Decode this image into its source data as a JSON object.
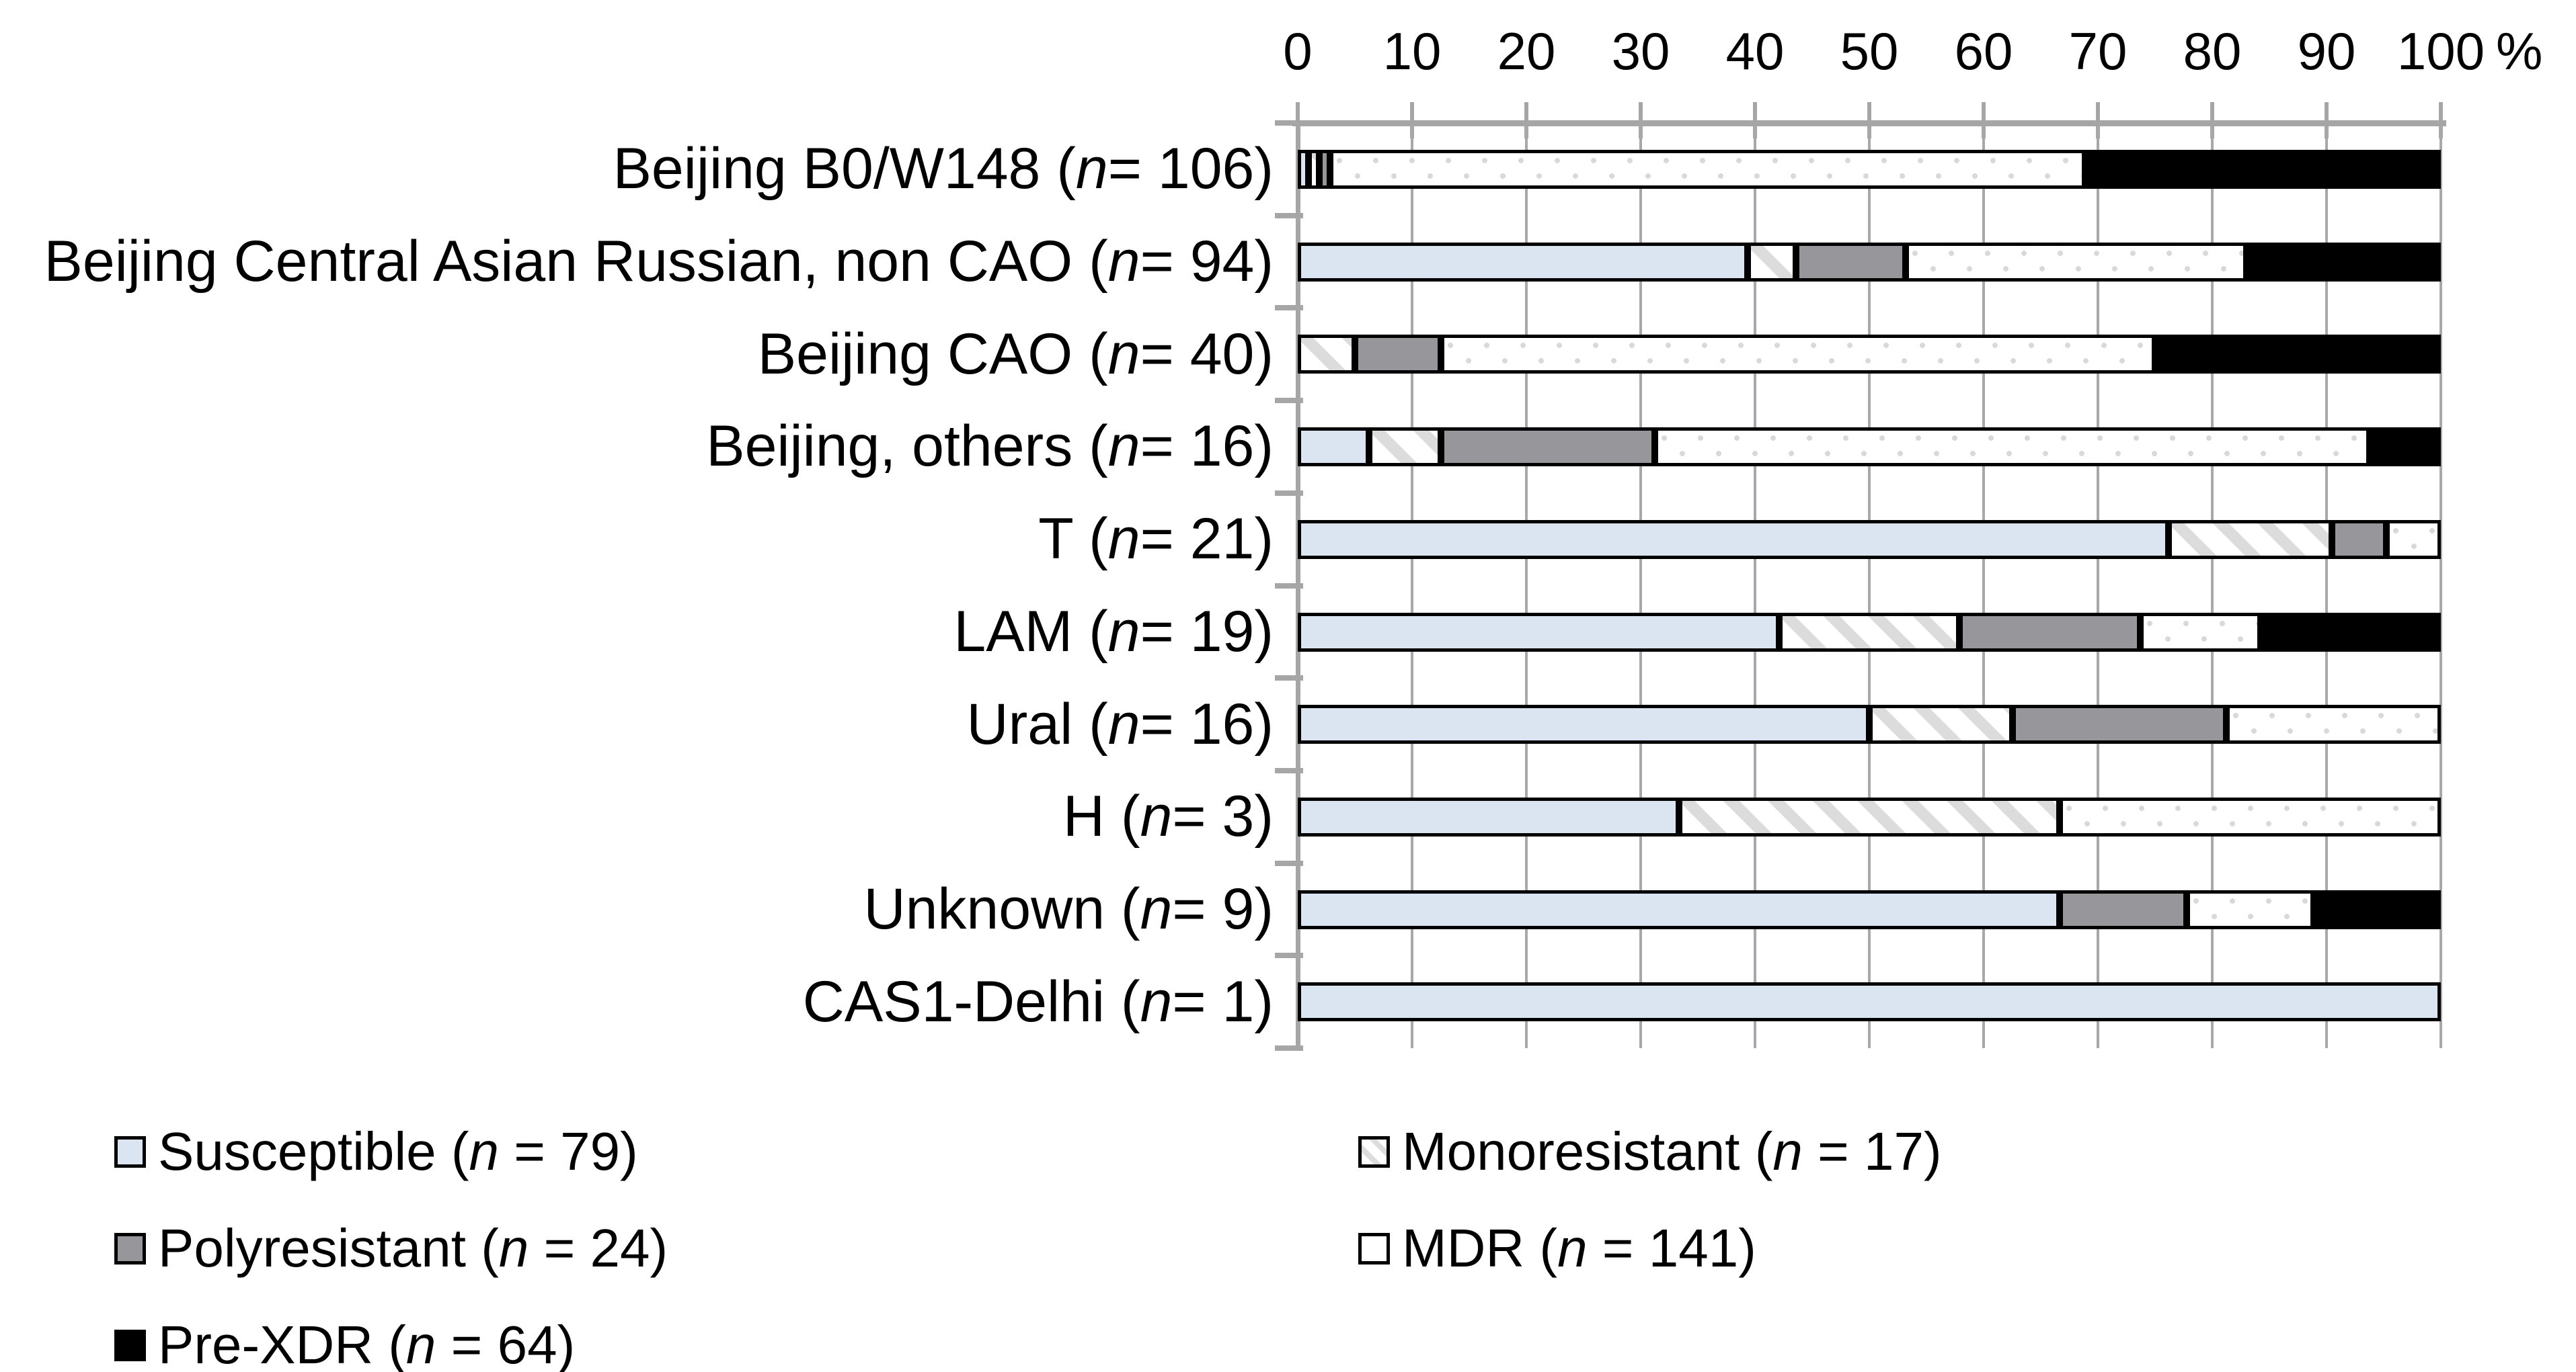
{
  "chart_data": {
    "type": "bar",
    "variant": "horizontal-stacked-100pct",
    "title": "",
    "xlabel": "",
    "ylabel": "",
    "grid": true,
    "x_axis": {
      "min": 0,
      "max": 100,
      "ticks": [
        0,
        10,
        20,
        30,
        40,
        50,
        60,
        70,
        80,
        90,
        100
      ],
      "suffix": "%",
      "position": "top"
    },
    "category_label_format": "{name} ({n_italic} = {n})",
    "categories": [
      {
        "name": "Beijing B0/W148",
        "n": 106
      },
      {
        "name": "Beijing Central Asian Russian, non CAO",
        "n": 94
      },
      {
        "name": "Beijing CAO",
        "n": 40
      },
      {
        "name": "Beijing, others",
        "n": 16
      },
      {
        "name": "T",
        "n": 21
      },
      {
        "name": "LAM",
        "n": 19
      },
      {
        "name": "Ural",
        "n": 16
      },
      {
        "name": "H",
        "n": 3
      },
      {
        "name": "Unknown",
        "n": 9
      },
      {
        "name": "CAS1-Delhi",
        "n": 1
      }
    ],
    "series": [
      {
        "key": "susceptible",
        "label": "Susceptible",
        "n": 79,
        "pattern": "solid",
        "color": "#dbe4f1",
        "counts": [
          1,
          37,
          0,
          1,
          16,
          8,
          8,
          1,
          6,
          1
        ]
      },
      {
        "key": "monoresistant",
        "label": "Monoresistant",
        "n": 17,
        "pattern": "diagonal-stripes",
        "color": "#dcdcdc",
        "counts": [
          1,
          4,
          2,
          1,
          3,
          3,
          2,
          1,
          0,
          0
        ]
      },
      {
        "key": "polyresistant",
        "label": "Polyresistant",
        "n": 24,
        "pattern": "solid",
        "color": "#97979b",
        "counts": [
          1,
          9,
          3,
          3,
          1,
          3,
          3,
          0,
          1,
          0
        ]
      },
      {
        "key": "mdr",
        "label": "MDR",
        "n": 141,
        "pattern": "dots",
        "color": "#ffffff",
        "counts": [
          70,
          28,
          25,
          10,
          1,
          2,
          3,
          1,
          1,
          0
        ]
      },
      {
        "key": "prexdr",
        "label": "Pre-XDR",
        "n": 64,
        "pattern": "solid",
        "color": "#000000",
        "counts": [
          33,
          16,
          10,
          1,
          0,
          3,
          0,
          0,
          1,
          0
        ]
      }
    ],
    "legend": {
      "position": "bottom",
      "columns": [
        [
          "susceptible",
          "polyresistant",
          "prexdr"
        ],
        [
          "monoresistant",
          "mdr"
        ]
      ],
      "item_label_format": "{label} ({n_italic} = {n})"
    },
    "colors": {
      "susceptible": "#dbe4f1",
      "polyresistant": "#97979b",
      "pre_xdr": "#000000",
      "pattern_gray": "#d9d9d9",
      "bar_border": "#000000",
      "axis_gray": "#a6a6a6",
      "background": "#ffffff"
    }
  }
}
